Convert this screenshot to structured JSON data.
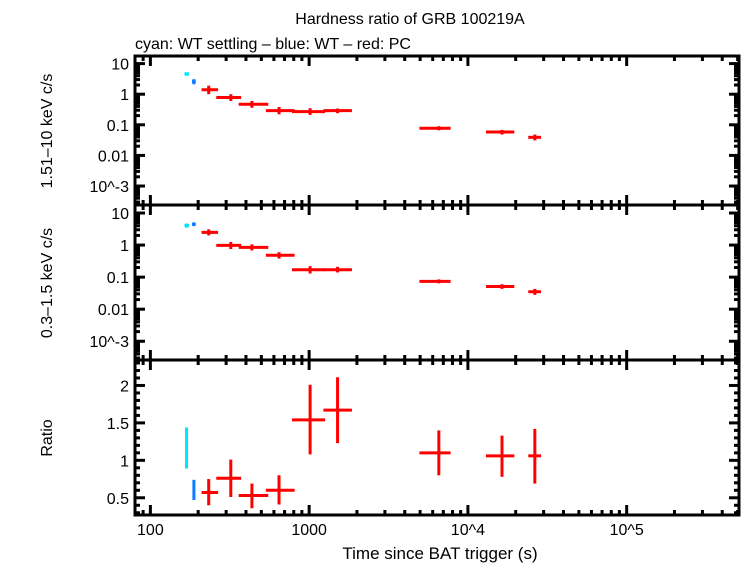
{
  "chart_data": {
    "type": "scatter",
    "title": "Hardness ratio of GRB 100219A",
    "subtitle": "cyan: WT settling – blue: WT – red: PC",
    "xlabel": "Time since BAT trigger (s)",
    "xscale": "log",
    "xlim": [
      80,
      510000
    ],
    "x_tick_labels": [
      "100",
      "1000",
      "10^4",
      "10^5"
    ],
    "x_tick_values": [
      100,
      1000,
      10000,
      100000
    ],
    "colors": {
      "WT settling": "#00e5ff",
      "WT": "#0a7cff",
      "PC": "#ff0000"
    },
    "panels": [
      {
        "ylabel": "1.51–10 keV c/s",
        "yscale": "log",
        "ylim": [
          0.00024,
          17.7
        ],
        "y_tick_values": [
          10,
          1,
          0.1,
          0.01,
          0.001
        ],
        "y_tick_labels": [
          "10",
          "1",
          "0.1",
          "0.01",
          "10^-3"
        ],
        "series": [
          {
            "mode": "WT settling",
            "points": [
              {
                "x": 169,
                "xlo": 164,
                "xhi": 175,
                "y": 4.6,
                "ylo": 4.0,
                "yhi": 5.2
              }
            ]
          },
          {
            "mode": "WT",
            "points": [
              {
                "x": 188,
                "xlo": 183,
                "xhi": 193,
                "y": 2.6,
                "ylo": 2.1,
                "yhi": 3.1
              }
            ]
          },
          {
            "mode": "PC",
            "points": [
              {
                "x": 233,
                "xlo": 210,
                "xhi": 267,
                "y": 1.4,
                "ylo": 1.0,
                "yhi": 1.9
              },
              {
                "x": 321,
                "xlo": 260,
                "xhi": 373,
                "y": 0.78,
                "ylo": 0.6,
                "yhi": 1.0
              },
              {
                "x": 436,
                "xlo": 360,
                "xhi": 553,
                "y": 0.47,
                "ylo": 0.36,
                "yhi": 0.6
              },
              {
                "x": 646,
                "xlo": 534,
                "xhi": 810,
                "y": 0.29,
                "ylo": 0.22,
                "yhi": 0.38
              },
              {
                "x": 1014,
                "xlo": 780,
                "xhi": 1260,
                "y": 0.27,
                "ylo": 0.21,
                "yhi": 0.35
              },
              {
                "x": 1510,
                "xlo": 1230,
                "xhi": 1860,
                "y": 0.29,
                "ylo": 0.24,
                "yhi": 0.34
              },
              {
                "x": 6560,
                "xlo": 4950,
                "xhi": 7780,
                "y": 0.077,
                "ylo": 0.066,
                "yhi": 0.09
              },
              {
                "x": 16400,
                "xlo": 13000,
                "xhi": 19600,
                "y": 0.058,
                "ylo": 0.048,
                "yhi": 0.068
              },
              {
                "x": 26400,
                "xlo": 24000,
                "xhi": 28900,
                "y": 0.039,
                "ylo": 0.031,
                "yhi": 0.048
              }
            ]
          }
        ]
      },
      {
        "ylabel": "0.3–1.5 keV c/s",
        "yscale": "log",
        "ylim": [
          0.00026,
          17.8
        ],
        "y_tick_values": [
          10,
          1,
          0.1,
          0.01,
          0.001
        ],
        "y_tick_labels": [
          "10",
          "1",
          "0.1",
          "0.01",
          "10^-3"
        ],
        "series": [
          {
            "mode": "WT settling",
            "points": [
              {
                "x": 169,
                "xlo": 164,
                "xhi": 175,
                "y": 4.1,
                "ylo": 3.5,
                "yhi": 4.7
              }
            ]
          },
          {
            "mode": "WT",
            "points": [
              {
                "x": 188,
                "xlo": 183,
                "xhi": 193,
                "y": 4.5,
                "ylo": 3.9,
                "yhi": 5.1
              }
            ]
          },
          {
            "mode": "PC",
            "points": [
              {
                "x": 233,
                "xlo": 210,
                "xhi": 267,
                "y": 2.5,
                "ylo": 2.0,
                "yhi": 3.1
              },
              {
                "x": 321,
                "xlo": 260,
                "xhi": 373,
                "y": 0.98,
                "ylo": 0.75,
                "yhi": 1.25
              },
              {
                "x": 436,
                "xlo": 360,
                "xhi": 553,
                "y": 0.85,
                "ylo": 0.68,
                "yhi": 1.05
              },
              {
                "x": 646,
                "xlo": 534,
                "xhi": 810,
                "y": 0.48,
                "ylo": 0.38,
                "yhi": 0.6
              },
              {
                "x": 1014,
                "xlo": 780,
                "xhi": 1260,
                "y": 0.17,
                "ylo": 0.13,
                "yhi": 0.22
              },
              {
                "x": 1510,
                "xlo": 1230,
                "xhi": 1860,
                "y": 0.17,
                "ylo": 0.14,
                "yhi": 0.21
              },
              {
                "x": 6560,
                "xlo": 4950,
                "xhi": 7780,
                "y": 0.074,
                "ylo": 0.064,
                "yhi": 0.085
              },
              {
                "x": 16400,
                "xlo": 13000,
                "xhi": 19600,
                "y": 0.051,
                "ylo": 0.043,
                "yhi": 0.06
              },
              {
                "x": 26400,
                "xlo": 24000,
                "xhi": 28900,
                "y": 0.035,
                "ylo": 0.028,
                "yhi": 0.043
              }
            ]
          }
        ]
      },
      {
        "ylabel": "Ratio",
        "yscale": "linear",
        "ylim": [
          0.27,
          2.34
        ],
        "y_tick_values": [
          2,
          1.5,
          1,
          0.5
        ],
        "y_tick_labels": [
          "2",
          "1.5",
          "1",
          "0.5"
        ],
        "series": [
          {
            "mode": "WT settling",
            "points": [
              {
                "x": 169,
                "xlo": 166,
                "xhi": 172,
                "y": 1.17,
                "ylo": 0.89,
                "yhi": 1.44
              }
            ]
          },
          {
            "mode": "WT",
            "points": [
              {
                "x": 188,
                "xlo": 185,
                "xhi": 191,
                "y": 0.59,
                "ylo": 0.47,
                "yhi": 0.74
              }
            ]
          },
          {
            "mode": "PC",
            "points": [
              {
                "x": 233,
                "xlo": 210,
                "xhi": 267,
                "y": 0.57,
                "ylo": 0.4,
                "yhi": 0.75
              },
              {
                "x": 321,
                "xlo": 260,
                "xhi": 373,
                "y": 0.76,
                "ylo": 0.51,
                "yhi": 1.01
              },
              {
                "x": 436,
                "xlo": 360,
                "xhi": 553,
                "y": 0.53,
                "ylo": 0.36,
                "yhi": 0.69
              },
              {
                "x": 646,
                "xlo": 534,
                "xhi": 810,
                "y": 0.6,
                "ylo": 0.41,
                "yhi": 0.8
              },
              {
                "x": 1014,
                "xlo": 780,
                "xhi": 1260,
                "y": 1.54,
                "ylo": 1.08,
                "yhi": 2.01
              },
              {
                "x": 1510,
                "xlo": 1230,
                "xhi": 1860,
                "y": 1.67,
                "ylo": 1.23,
                "yhi": 2.11
              },
              {
                "x": 6560,
                "xlo": 4950,
                "xhi": 7780,
                "y": 1.1,
                "ylo": 0.8,
                "yhi": 1.4
              },
              {
                "x": 16400,
                "xlo": 13000,
                "xhi": 19600,
                "y": 1.06,
                "ylo": 0.78,
                "yhi": 1.33
              },
              {
                "x": 26400,
                "xlo": 24000,
                "xhi": 28900,
                "y": 1.06,
                "ylo": 0.69,
                "yhi": 1.42
              }
            ]
          }
        ]
      }
    ]
  }
}
